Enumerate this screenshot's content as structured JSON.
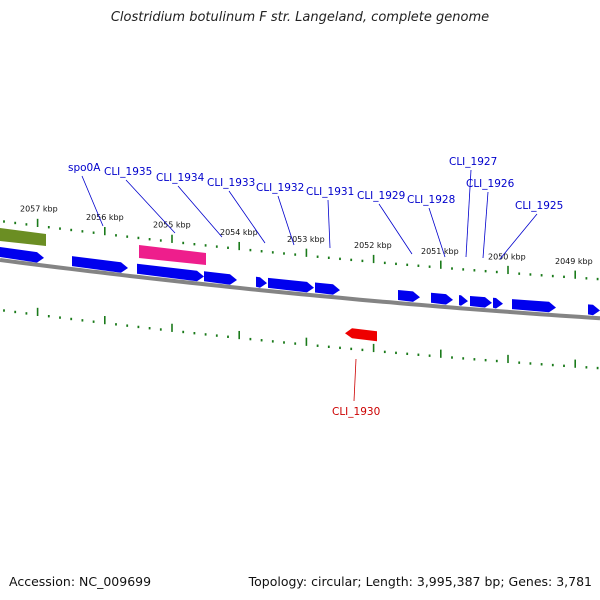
{
  "title": "Clostridium botulinum F str. Langeland, complete genome",
  "footer": {
    "accession": "Accession: NC_009699",
    "stats": "Topology: circular; Length: 3,995,387 bp; Genes: 3,781"
  },
  "colors": {
    "forward_gene": "#0000ee",
    "reverse_gene": "#ee0000",
    "highlight_gene": "#ee1e8c",
    "feature_green": "#6b8e23",
    "label_forward": "#0000cc",
    "label_reverse": "#cc0000",
    "tick": "#1a7a1a",
    "backbone": "#777777"
  },
  "kbp_labels": [
    "2057 kbp",
    "2056 kbp",
    "2055 kbp",
    "2054 kbp",
    "2053 kbp",
    "2052 kbp",
    "2051 kbp",
    "2050 kbp",
    "2049 kbp"
  ],
  "gene_labels": [
    {
      "name": "spo0A",
      "strand": "forward"
    },
    {
      "name": "CLI_1935",
      "strand": "forward"
    },
    {
      "name": "CLI_1934",
      "strand": "forward"
    },
    {
      "name": "CLI_1933",
      "strand": "forward"
    },
    {
      "name": "CLI_1932",
      "strand": "forward"
    },
    {
      "name": "CLI_1931",
      "strand": "forward"
    },
    {
      "name": "CLI_1929",
      "strand": "forward"
    },
    {
      "name": "CLI_1928",
      "strand": "forward"
    },
    {
      "name": "CLI_1927",
      "strand": "forward"
    },
    {
      "name": "CLI_1926",
      "strand": "forward"
    },
    {
      "name": "CLI_1925",
      "strand": "forward"
    },
    {
      "name": "CLI_1930",
      "strand": "reverse"
    }
  ]
}
